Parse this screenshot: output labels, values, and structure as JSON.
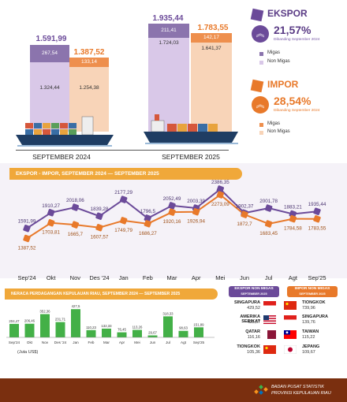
{
  "colors": {
    "ekspor": "#6b4a99",
    "ekspor_light": "#c8b4dc",
    "ekspor_top": "#8b74ad",
    "impor": "#e8792a",
    "impor_light": "#f5c9a6",
    "impor_top": "#ee8f4d",
    "banner": "#f0a83a",
    "footer": "#7a2f0f"
  },
  "top_chart": {
    "periods": [
      {
        "label": "SEPTEMBER 2024",
        "ekspor_total": "1.591,99",
        "ekspor_migas": "267,54",
        "ekspor_nonmigas": "1.324,44",
        "impor_total": "1.387,52",
        "impor_migas": "133,14",
        "impor_nonmigas": "1.254,38"
      },
      {
        "label": "SEPTEMBER 2025",
        "ekspor_total": "1.935,44",
        "ekspor_migas": "211,41",
        "ekspor_nonmigas": "1.724,03",
        "impor_total": "1.783,55",
        "impor_migas": "142,17",
        "impor_nonmigas": "1.641,37"
      }
    ]
  },
  "ekspor_panel": {
    "title": "EKSPOR",
    "pct": "21,57%",
    "note": "Dibanding September 2024",
    "legend": [
      "Migas",
      "Non Migas"
    ]
  },
  "impor_panel": {
    "title": "IMPOR",
    "pct": "28,54%",
    "note": "Dibanding September 2024",
    "legend": [
      "Migas",
      "Non Migas"
    ]
  },
  "trend": {
    "title": "EKSPOR - IMPOR, SEPTEMBER 2024 — SEPTEMBER 2025",
    "months": [
      "Sep'24",
      "Okt",
      "Nov",
      "Des '24",
      "Jan",
      "Feb",
      "Mar",
      "Apr",
      "Mei",
      "Jun",
      "Jul",
      "Agt",
      "Sep'25"
    ],
    "ekspor_labels": [
      "1591,99",
      "1910,27",
      "2018,06",
      "1839,28",
      "2177,29",
      "1796,5",
      "2052,49",
      "2003,39",
      "2386,35",
      "1902,37",
      "2001,78",
      "1883,21",
      "1935,44"
    ],
    "impor_labels": [
      "1387,52",
      "1703,81",
      "1665,7",
      "1607,57",
      "1749,79",
      "1686,27",
      "1920,16",
      "1926,94",
      "2273,09",
      "1872,7",
      "1683,45",
      "1784,58",
      "1783,55"
    ]
  },
  "chart_data": [
    {
      "type": "bar",
      "title": "",
      "categories": [
        "SEPTEMBER 2024",
        "SEPTEMBER 2025"
      ],
      "series": [
        {
          "name": "Migas",
          "values": [
            267.54,
            211.41
          ]
        },
        {
          "name": "Non Migas",
          "values": [
            1324.44,
            1724.03
          ]
        },
        {
          "name": "Migas",
          "values": [
            133.14,
            142.17
          ]
        },
        {
          "name": "Non Migas",
          "values": [
            1254.38,
            1641.37
          ]
        }
      ]
    },
    {
      "type": "line",
      "title": "EKSPOR - IMPOR, SEPTEMBER 2024 — SEPTEMBER 2025",
      "x": [
        "Sep'24",
        "Okt",
        "Nov",
        "Des '24",
        "Jan",
        "Feb",
        "Mar",
        "Apr",
        "Mei",
        "Jun",
        "Jul",
        "Agt",
        "Sep'25"
      ],
      "series": [
        {
          "name": "",
          "values": [
            1591.99,
            1910.27,
            2018.06,
            1839.28,
            2177.29,
            1796.5,
            2052.49,
            2003.39,
            2386.35,
            1902.37,
            2001.78,
            1883.21,
            1935.44
          ]
        },
        {
          "name": "",
          "values": [
            1387.52,
            1703.81,
            1665.7,
            1607.57,
            1749.79,
            1686.27,
            1920.16,
            1926.94,
            2273.09,
            1872.7,
            1683.45,
            1784.58,
            1783.55
          ]
        }
      ]
    },
    {
      "type": "bar",
      "title": "NERACA PERDAGANGAN KEPULAUAN RIAU, SEPTEMBER 2024 — SEPTEMBER 2025",
      "categories": [
        "Sep'24",
        "Okt",
        "Nov",
        "Des '24",
        "Jan",
        "Feb",
        "Mar",
        "Apr",
        "Mei",
        "Jun",
        "Jul",
        "Agt",
        "Sep'25"
      ],
      "values": [
        204.47,
        206.46,
        352.36,
        231.71,
        427.5,
        110.23,
        132.33,
        76.45,
        113.26,
        29.67,
        318.33,
        98.63,
        151.89
      ],
      "ylabel": "(Juta US$)"
    }
  ],
  "balance": {
    "title": "NERACA PERDAGANGAN KEPULAUAN RIAU, SEPTEMBER 2024 — SEPTEMBER 2025",
    "labels": [
      "204,47",
      "206,46",
      "352,36",
      "231,71",
      "427,5",
      "110,23",
      "132,33",
      "76,45",
      "113,26",
      "29,67",
      "318,33",
      "98,63",
      "151,89"
    ],
    "months": [
      "Sep'24",
      "Okt",
      "Nov",
      "Des '24",
      "Jan",
      "Feb",
      "Mar",
      "Apr",
      "Mei",
      "Jun",
      "Jul",
      "Agt",
      "Sep'25"
    ],
    "unit": "(Juta US$)"
  },
  "partners": {
    "ekspor_head": "EKSPOR NON MIGAS",
    "ekspor_sub": "SEPTEMBER 2025",
    "impor_head": "IMPOR NON MIGAS",
    "impor_sub": "SEPTEMBER 2025",
    "ekspor": [
      {
        "name": "SINGAPURA",
        "value": "429,52"
      },
      {
        "name": "AMERIKA SERIKAT",
        "value": "428,67"
      },
      {
        "name": "QATAR",
        "value": "116,16"
      },
      {
        "name": "TIONGKOK",
        "value": "105,36"
      }
    ],
    "impor": [
      {
        "name": "TIONGKOK",
        "value": "739,96"
      },
      {
        "name": "SINGAPURA",
        "value": "139,76"
      },
      {
        "name": "TAIWAN",
        "value": "115,22"
      },
      {
        "name": "JEPANG",
        "value": "109,67"
      }
    ]
  },
  "footer": {
    "line1": "BADAN PUSAT STATISTIK",
    "line2": "PROVINSI KEPULAUAN RIAU"
  }
}
